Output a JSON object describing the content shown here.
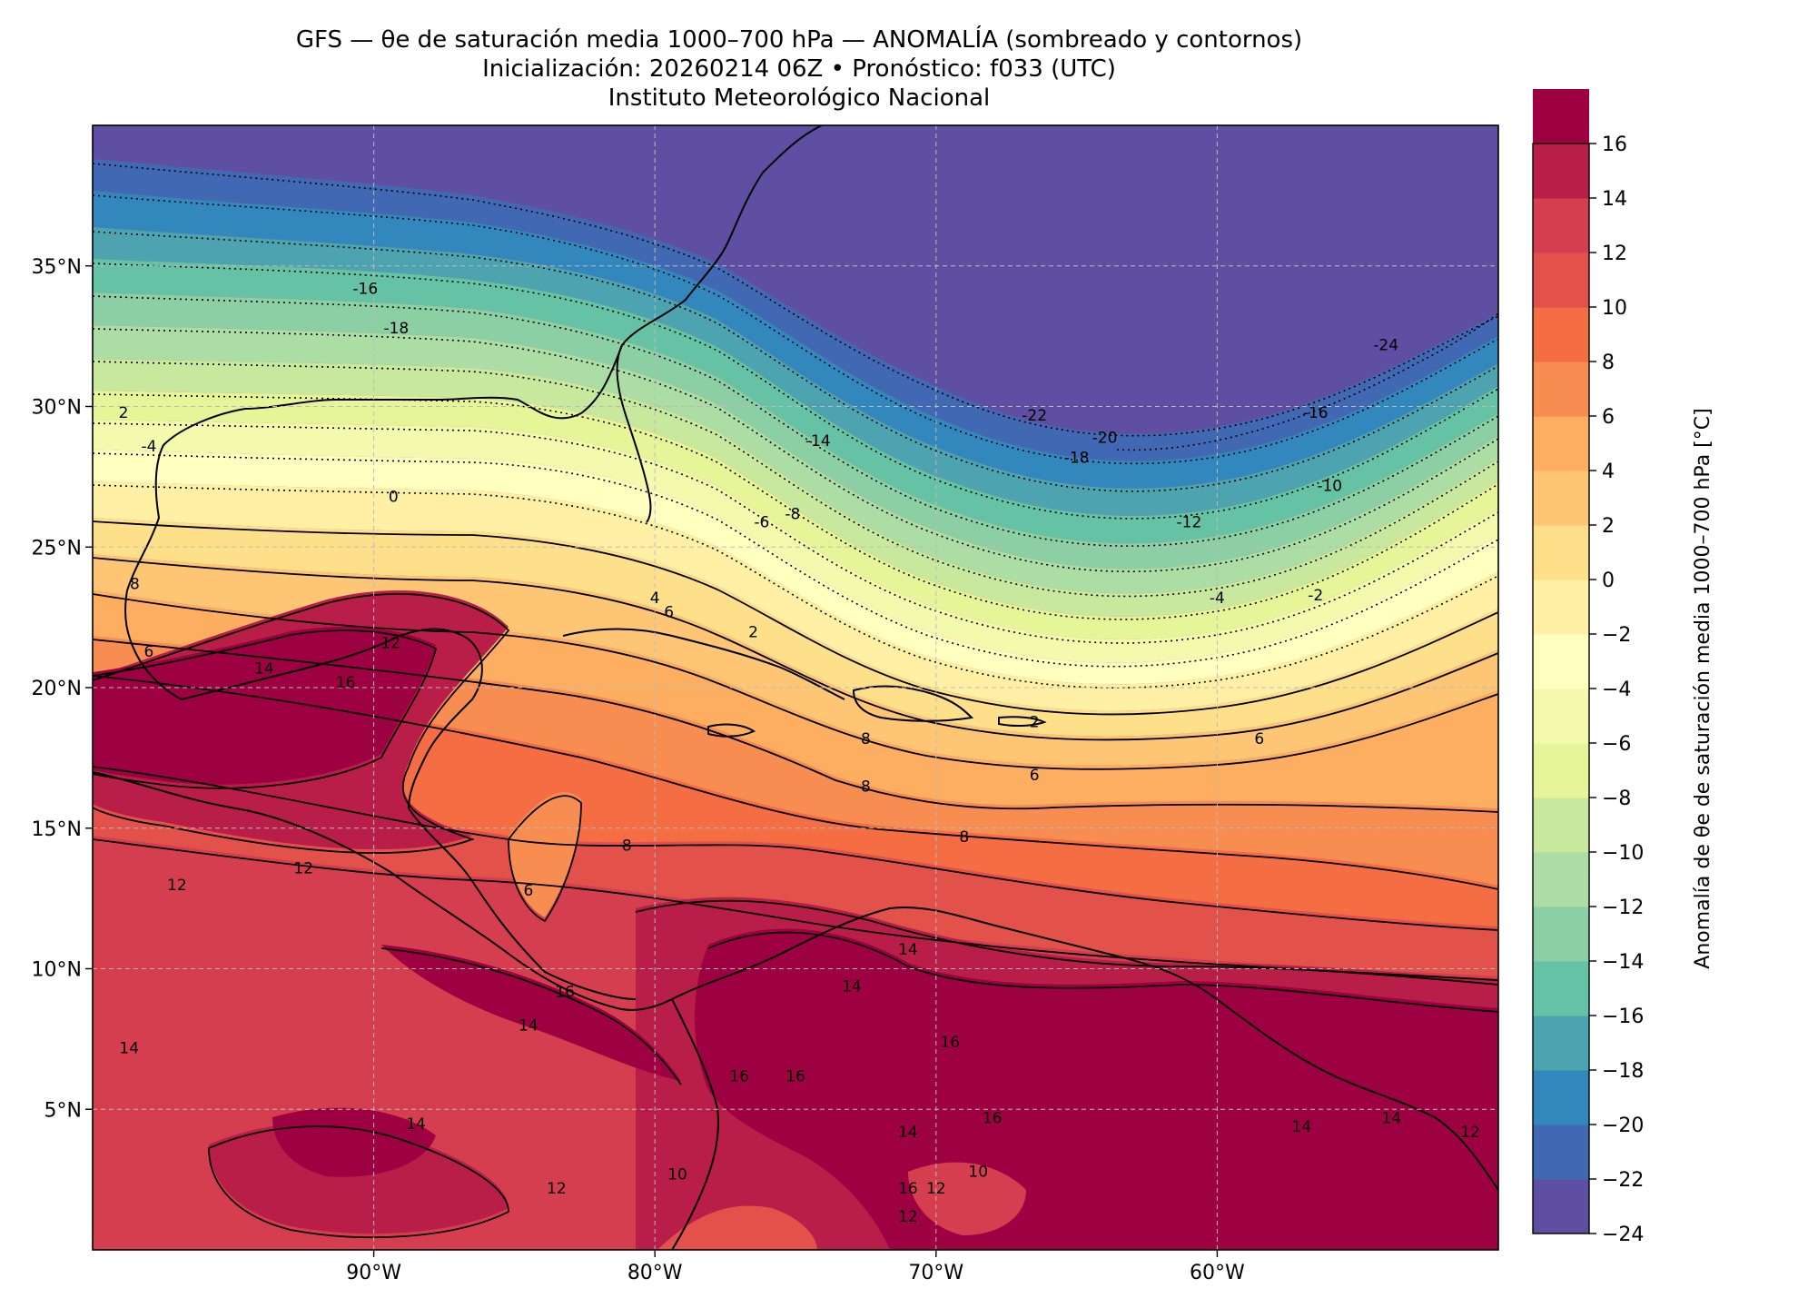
{
  "title": {
    "line1": "GFS — θe de saturación media 1000–700 hPa — ANOMALÍA (sombreado y contornos)",
    "line2": "Inicialización: 20260214 06Z   •   Pronóstico: f033 (UTC)",
    "line3": "Instituto Meteorológico Nacional"
  },
  "map": {
    "lon_range": [
      -100,
      -50
    ],
    "lat_range": [
      0,
      40
    ],
    "x_ticks": [
      {
        "lon": -90,
        "label": "90°W"
      },
      {
        "lon": -80,
        "label": "80°W"
      },
      {
        "lon": -70,
        "label": "70°W"
      },
      {
        "lon": -60,
        "label": "60°W"
      }
    ],
    "y_ticks": [
      {
        "lat": 35,
        "label": "35°N"
      },
      {
        "lat": 30,
        "label": "30°N"
      },
      {
        "lat": 25,
        "label": "25°N"
      },
      {
        "lat": 20,
        "label": "20°N"
      },
      {
        "lat": 15,
        "label": "15°N"
      },
      {
        "lat": 10,
        "label": "10°N"
      },
      {
        "lat": 5,
        "label": "5°N"
      }
    ],
    "gridlines": true,
    "contour_labels": [
      {
        "text": "-16",
        "lon": -90.3,
        "lat": 34.0
      },
      {
        "text": "-18",
        "lon": -89.2,
        "lat": 32.6
      },
      {
        "text": "2",
        "lon": -98.9,
        "lat": 29.6
      },
      {
        "text": "-4",
        "lon": -98.0,
        "lat": 28.4
      },
      {
        "text": "0",
        "lon": -89.3,
        "lat": 26.6
      },
      {
        "text": "8",
        "lon": -98.5,
        "lat": 23.5
      },
      {
        "text": "6",
        "lon": -98.0,
        "lat": 21.1
      },
      {
        "text": "12",
        "lon": -89.4,
        "lat": 21.4
      },
      {
        "text": "14",
        "lon": -93.9,
        "lat": 20.5
      },
      {
        "text": "16",
        "lon": -91.0,
        "lat": 20.0
      },
      {
        "text": "-14",
        "lon": -74.2,
        "lat": 28.6
      },
      {
        "text": "-6",
        "lon": -76.2,
        "lat": 25.7
      },
      {
        "text": "-8",
        "lon": -75.1,
        "lat": 26.0
      },
      {
        "text": "-22",
        "lon": -66.5,
        "lat": 29.5
      },
      {
        "text": "-20",
        "lon": -64.0,
        "lat": 28.7
      },
      {
        "text": "-18",
        "lon": -65.0,
        "lat": 28.0
      },
      {
        "text": "-12",
        "lon": -61.0,
        "lat": 25.7
      },
      {
        "text": "-10",
        "lon": -56.0,
        "lat": 27.0
      },
      {
        "text": "-16",
        "lon": -56.5,
        "lat": 29.6
      },
      {
        "text": "-24",
        "lon": -54.0,
        "lat": 32.0
      },
      {
        "text": "-4",
        "lon": -60.0,
        "lat": 23.0
      },
      {
        "text": "-2",
        "lon": -56.5,
        "lat": 23.1
      },
      {
        "text": "4",
        "lon": -80.0,
        "lat": 23.0
      },
      {
        "text": "6",
        "lon": -79.5,
        "lat": 22.5
      },
      {
        "text": "2",
        "lon": -76.5,
        "lat": 21.8
      },
      {
        "text": "2",
        "lon": -66.5,
        "lat": 18.6
      },
      {
        "text": "6",
        "lon": -66.5,
        "lat": 16.7
      },
      {
        "text": "6",
        "lon": -58.5,
        "lat": 18.0
      },
      {
        "text": "8",
        "lon": -72.5,
        "lat": 18.0
      },
      {
        "text": "8",
        "lon": -72.5,
        "lat": 16.3
      },
      {
        "text": "8",
        "lon": -69.0,
        "lat": 14.5
      },
      {
        "text": "8",
        "lon": -81.0,
        "lat": 14.2
      },
      {
        "text": "6",
        "lon": -84.5,
        "lat": 12.6
      },
      {
        "text": "12",
        "lon": -92.5,
        "lat": 13.4
      },
      {
        "text": "12",
        "lon": -97.0,
        "lat": 12.8
      },
      {
        "text": "14",
        "lon": -84.5,
        "lat": 7.8
      },
      {
        "text": "16",
        "lon": -83.2,
        "lat": 9.0
      },
      {
        "text": "14",
        "lon": -71.0,
        "lat": 10.5
      },
      {
        "text": "14",
        "lon": -73.0,
        "lat": 9.2
      },
      {
        "text": "16",
        "lon": -69.5,
        "lat": 7.2
      },
      {
        "text": "16",
        "lon": -75.0,
        "lat": 6.0
      },
      {
        "text": "16",
        "lon": -77.0,
        "lat": 6.0
      },
      {
        "text": "14",
        "lon": -98.7,
        "lat": 7.0
      },
      {
        "text": "14",
        "lon": -88.5,
        "lat": 4.3
      },
      {
        "text": "12",
        "lon": -83.5,
        "lat": 2.0
      },
      {
        "text": "10",
        "lon": -79.2,
        "lat": 2.5
      },
      {
        "text": "14",
        "lon": -71.0,
        "lat": 4.0
      },
      {
        "text": "16",
        "lon": -71.0,
        "lat": 2.0
      },
      {
        "text": "10",
        "lon": -68.5,
        "lat": 2.6
      },
      {
        "text": "12",
        "lon": -70.0,
        "lat": 2.0
      },
      {
        "text": "16",
        "lon": -68.0,
        "lat": 4.5
      },
      {
        "text": "12",
        "lon": -71.0,
        "lat": 1.0
      },
      {
        "text": "14",
        "lon": -53.8,
        "lat": 4.5
      },
      {
        "text": "14",
        "lon": -57.0,
        "lat": 4.2
      },
      {
        "text": "12",
        "lon": -51.0,
        "lat": 4.0
      }
    ]
  },
  "colorbar": {
    "label": "Anomalía de θe de saturación media 1000–700 hPa [°C]",
    "vmin": -24,
    "vmax": 16,
    "step": 2,
    "colors": [
      "#5e4fa2",
      "#4169b3",
      "#3288bd",
      "#4ea3b1",
      "#66c2a5",
      "#8ccfa4",
      "#abdda4",
      "#c8e89e",
      "#e6f598",
      "#f3faad",
      "#ffffbf",
      "#fff0a6",
      "#fee08b",
      "#fdc574",
      "#fdae61",
      "#f88d52",
      "#f46d43",
      "#e2514a",
      "#d53e4f",
      "#b91e49",
      "#9e0142"
    ],
    "ticks": [
      16,
      14,
      12,
      10,
      8,
      6,
      4,
      2,
      0,
      -2,
      -4,
      -6,
      -8,
      -10,
      -12,
      -14,
      -16,
      -18,
      -20,
      -22,
      -24
    ]
  }
}
